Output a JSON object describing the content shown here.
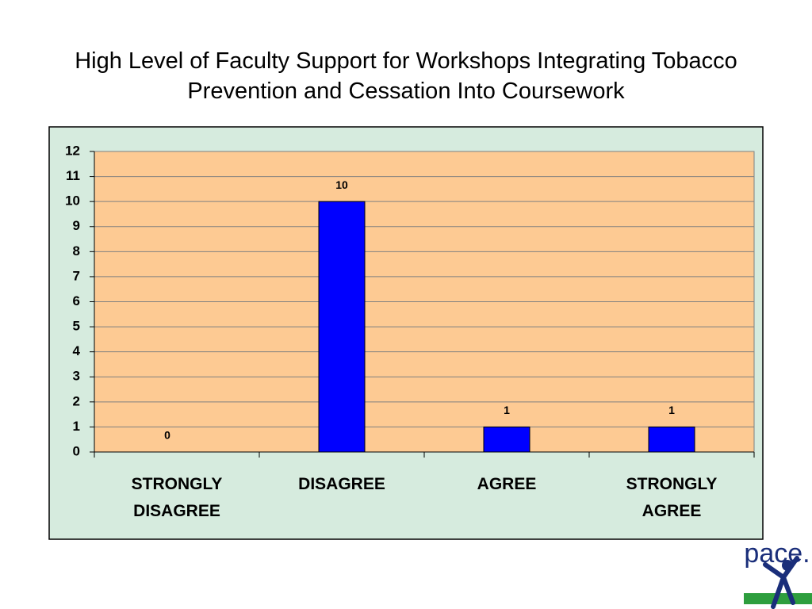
{
  "chart_data": {
    "type": "bar",
    "title": "High Level of Faculty Support for Workshops Integrating Tobacco Prevention and Cessation Into Coursework",
    "categories": [
      "STRONGLY DISAGREE",
      "DISAGREE",
      "AGREE",
      "STRONGLY AGREE"
    ],
    "values": [
      0,
      10,
      1,
      1
    ],
    "color": "#0000ff",
    "ylim": [
      0,
      12
    ],
    "yticks": [
      0,
      1,
      2,
      3,
      4,
      5,
      6,
      7,
      8,
      9,
      10,
      11,
      12
    ],
    "grid": true
  },
  "logo": "pace."
}
